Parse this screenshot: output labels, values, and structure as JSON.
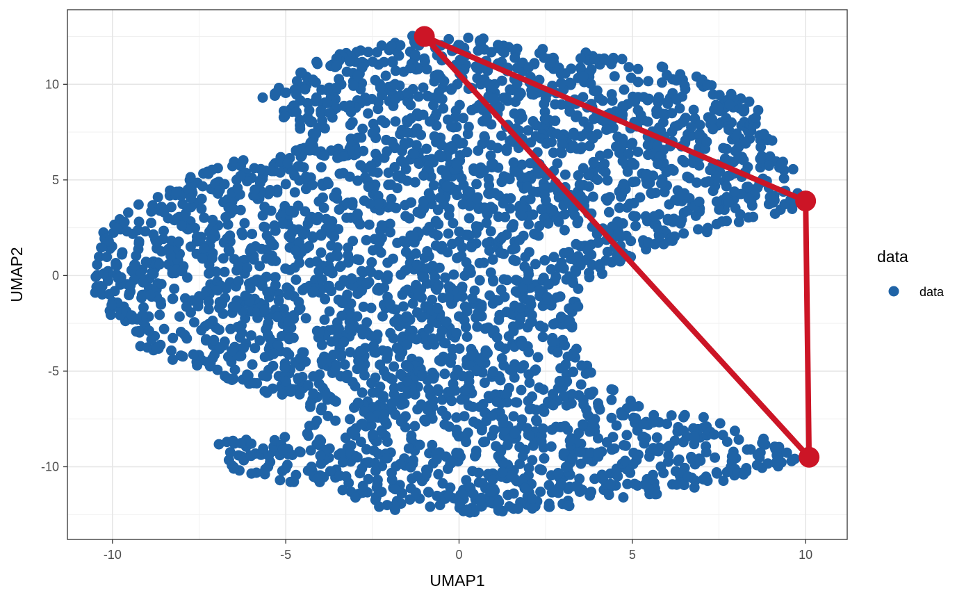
{
  "chart_data": {
    "type": "scatter",
    "xlabel": "UMAP1",
    "ylabel": "UMAP2",
    "xlim": [
      -11.3,
      11.2
    ],
    "ylim": [
      -13.8,
      13.9
    ],
    "x_ticks": [
      -10,
      -5,
      0,
      5,
      10
    ],
    "y_ticks": [
      -10,
      -5,
      0,
      5,
      10
    ],
    "x_tick_labels": [
      "-10",
      "-5",
      "0",
      "5",
      "10"
    ],
    "y_tick_labels": [
      "-10",
      "-5",
      "0",
      "5",
      "10"
    ],
    "grid": true,
    "legend": {
      "title": "data",
      "position": "right",
      "entries": [
        {
          "label": "data",
          "color": "#1f63a6"
        }
      ]
    },
    "series": [
      {
        "name": "data",
        "kind": "point-cloud",
        "color": "#1f63a6",
        "estimated_point_count": 3200,
        "region_outline": [
          [
            -1.2,
            12.6
          ],
          [
            1.0,
            12.4
          ],
          [
            2.5,
            12.0
          ],
          [
            4.5,
            11.5
          ],
          [
            6.0,
            11.0
          ],
          [
            7.5,
            10.2
          ],
          [
            8.5,
            9.0
          ],
          [
            9.2,
            7.2
          ],
          [
            9.8,
            5.0
          ],
          [
            10.0,
            3.7
          ],
          [
            8.0,
            2.5
          ],
          [
            6.0,
            1.5
          ],
          [
            4.5,
            0.5
          ],
          [
            3.5,
            -1.0
          ],
          [
            3.3,
            -3.5
          ],
          [
            4.0,
            -5.5
          ],
          [
            5.5,
            -7.0
          ],
          [
            7.5,
            -7.5
          ],
          [
            9.0,
            -8.5
          ],
          [
            10.0,
            -9.5
          ],
          [
            8.5,
            -10.5
          ],
          [
            6.5,
            -11.2
          ],
          [
            4.5,
            -11.8
          ],
          [
            2.5,
            -12.2
          ],
          [
            0.0,
            -12.5
          ],
          [
            -2.0,
            -12.3
          ],
          [
            -3.5,
            -11.5
          ],
          [
            -5.0,
            -10.8
          ],
          [
            -6.5,
            -10.2
          ],
          [
            -7.0,
            -8.7
          ],
          [
            -5.5,
            -8.5
          ],
          [
            -4.0,
            -7.5
          ],
          [
            -5.5,
            -6.2
          ],
          [
            -7.5,
            -5.0
          ],
          [
            -9.5,
            -3.5
          ],
          [
            -10.5,
            -1.0
          ],
          [
            -10.5,
            2.0
          ],
          [
            -9.5,
            3.5
          ],
          [
            -8.0,
            5.0
          ],
          [
            -6.5,
            6.0
          ],
          [
            -5.0,
            6.3
          ],
          [
            -4.3,
            7.0
          ],
          [
            -5.8,
            9.3
          ],
          [
            -4.5,
            11.0
          ],
          [
            -2.5,
            12.2
          ]
        ]
      },
      {
        "name": "",
        "kind": "triangle",
        "color": "#cc1526",
        "vertices": [
          {
            "x": -1.0,
            "y": 12.5
          },
          {
            "x": 10.0,
            "y": 3.9
          },
          {
            "x": 10.1,
            "y": -9.5
          }
        ]
      }
    ]
  }
}
